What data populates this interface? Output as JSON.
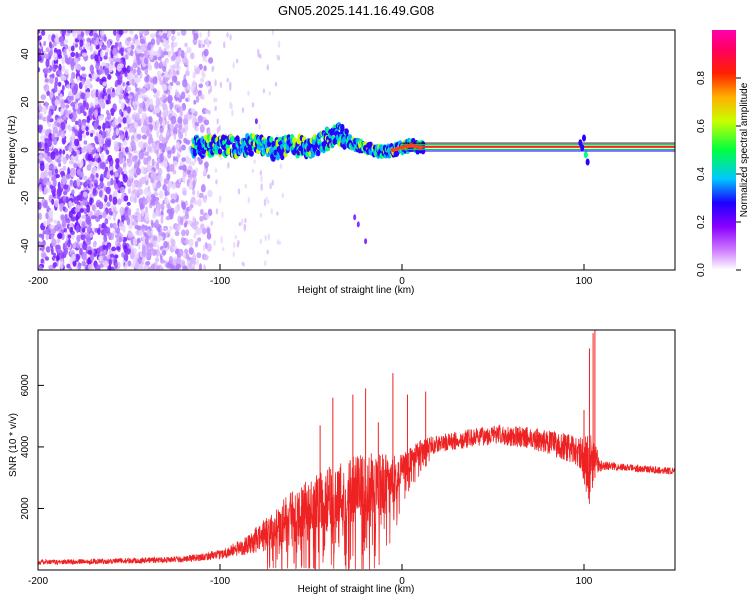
{
  "title": "GN05.2025.141.16.49.G08",
  "chart_data": [
    {
      "type": "heatmap",
      "title": "GN05.2025.141.16.49.G08",
      "xlabel": "Height of straight line (km)",
      "ylabel": "Frequency (Hz)",
      "xlim": [
        -200,
        150
      ],
      "ylim": [
        -50,
        50
      ],
      "x_ticks": [
        "-200",
        "-100",
        "0",
        "100"
      ],
      "y_ticks": [
        "-40",
        "-20",
        "0",
        "20",
        "40"
      ],
      "colorbar": {
        "label": "Normalized spectral amplitude",
        "range": [
          0.0,
          1.0
        ],
        "ticks": [
          "0.0",
          "0.2",
          "0.4",
          "0.6",
          "0.8"
        ],
        "colors": [
          "#ffffff",
          "#b04cff",
          "#1b00ff",
          "#00d8ff",
          "#00ff00",
          "#ffff00",
          "#ff7f00",
          "#ff0000",
          "#ff00a0"
        ]
      },
      "ridge": {
        "x": [
          -115,
          -100,
          -90,
          -80,
          -70,
          -60,
          -50,
          -40,
          -35,
          -30,
          -25,
          -20,
          -15,
          -10,
          -5,
          0,
          5,
          10,
          150
        ],
        "y": [
          1,
          2,
          1,
          3,
          0,
          2,
          1,
          5,
          7,
          4,
          2,
          1,
          0,
          -1,
          0,
          1,
          2,
          1,
          1
        ]
      },
      "grid": false
    },
    {
      "type": "line",
      "xlabel": "Height of straight line (km)",
      "ylabel": "SNR (10 * v/v)",
      "xlim": [
        -200,
        150
      ],
      "ylim": [
        0,
        7800
      ],
      "x_ticks": [
        "-200",
        "-100",
        "0",
        "100"
      ],
      "y_ticks": [
        "2000",
        "4000",
        "6000"
      ],
      "color": "#ee2222",
      "envelope": {
        "x": [
          -200,
          -150,
          -120,
          -100,
          -85,
          -70,
          -60,
          -50,
          -40,
          -30,
          -20,
          -12,
          -5,
          0,
          5,
          10,
          20,
          30,
          40,
          50,
          60,
          70,
          80,
          90,
          98,
          103,
          106,
          110,
          120,
          130,
          140,
          150
        ],
        "y": [
          250,
          300,
          350,
          500,
          800,
          1300,
          1700,
          2000,
          2300,
          2500,
          2600,
          2600,
          2800,
          3300,
          3600,
          3900,
          4100,
          4200,
          4300,
          4400,
          4350,
          4300,
          4150,
          4000,
          3800,
          3300,
          3600,
          3400,
          3350,
          3300,
          3250,
          3200
        ],
        "noise": [
          80,
          90,
          100,
          150,
          300,
          700,
          900,
          1000,
          1100,
          1200,
          1200,
          1200,
          900,
          500,
          400,
          350,
          300,
          300,
          300,
          320,
          330,
          350,
          400,
          450,
          500,
          1200,
          500,
          150,
          120,
          120,
          120,
          120
        ]
      },
      "peaks": {
        "x": [
          -45,
          -38,
          -27,
          -20,
          -13,
          -5,
          3,
          13,
          100,
          103,
          105,
          106
        ],
        "y": [
          4700,
          5600,
          5700,
          5900,
          4800,
          6400,
          5700,
          5800,
          5200,
          7200,
          7700,
          7800
        ]
      },
      "grid": false
    }
  ]
}
